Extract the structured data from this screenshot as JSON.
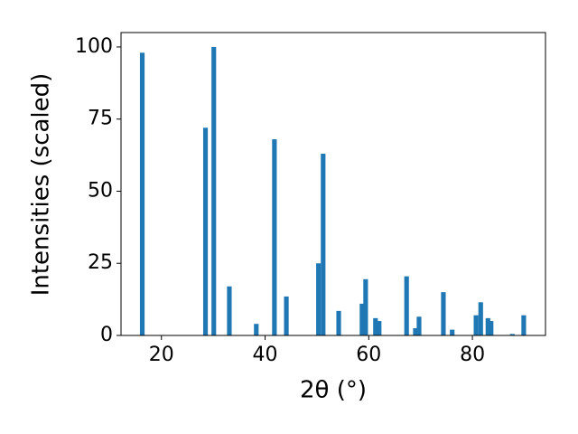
{
  "chart_data": {
    "type": "bar",
    "xlabel": "2θ (°)",
    "ylabel": "Intensities (scaled)",
    "x": [
      16.3,
      28.5,
      30.1,
      33.1,
      38.3,
      41.8,
      44.1,
      50.3,
      51.2,
      54.2,
      58.7,
      59.4,
      61.3,
      62.0,
      67.3,
      69.0,
      69.7,
      74.4,
      76.1,
      80.7,
      81.6,
      83.0,
      83.6,
      87.7,
      89.9
    ],
    "values": [
      98,
      72,
      100,
      17,
      4,
      68,
      13.5,
      25,
      63,
      8.5,
      11,
      19.5,
      6,
      5,
      20.5,
      2.5,
      6.5,
      15,
      2,
      7,
      11.5,
      6,
      5,
      0.5,
      7
    ],
    "color": "#1f77b4",
    "xlim": [
      12.2,
      94.1
    ],
    "xticks": [
      20,
      40,
      60,
      80
    ],
    "ylim": [
      0,
      105
    ],
    "yticks": [
      0,
      25,
      50,
      75,
      100
    ],
    "grid": false
  }
}
